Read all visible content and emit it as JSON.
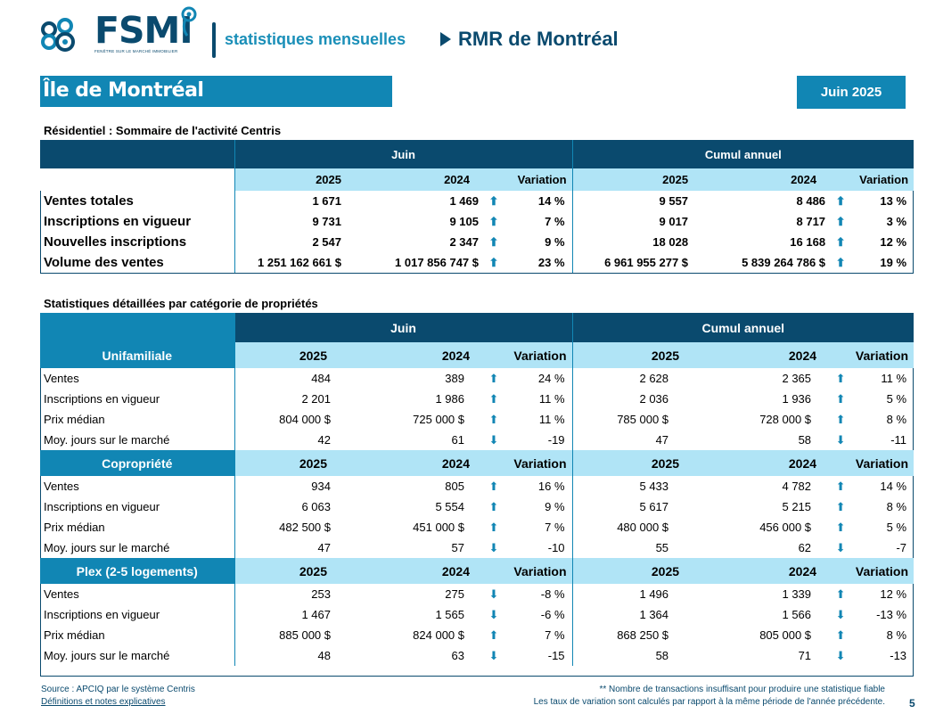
{
  "header": {
    "brand": "FSMI",
    "brand_tagline": "FENÊTRE SUR LE MARCHÉ IMMOBILIER",
    "subtitle": "statistiques mensuelles",
    "region": "RMR de Montréal",
    "brand_color": "#0a4a6e",
    "accent_color": "#1186b4"
  },
  "area": {
    "title": "Île de Montréal",
    "period": "Juin 2025"
  },
  "summary": {
    "title": "Résidentiel : Sommaire de l'activité Centris",
    "group_month": "Juin",
    "group_ytd": "Cumul annuel",
    "cols": [
      "2025",
      "2024",
      "Variation",
      "2025",
      "2024",
      "Variation"
    ],
    "rows": [
      {
        "label": "Ventes totales",
        "m25": "1 671",
        "m24": "1 469",
        "m_dir": "up",
        "m_var": "14 %",
        "y25": "9 557",
        "y24": "8 486",
        "y_dir": "up",
        "y_var": "13 %"
      },
      {
        "label": "Inscriptions en vigueur",
        "m25": "9 731",
        "m24": "9 105",
        "m_dir": "up",
        "m_var": "7 %",
        "y25": "9 017",
        "y24": "8 717",
        "y_dir": "up",
        "y_var": "3 %"
      },
      {
        "label": "Nouvelles inscriptions",
        "m25": "2 547",
        "m24": "2 347",
        "m_dir": "up",
        "m_var": "9 %",
        "y25": "18 028",
        "y24": "16 168",
        "y_dir": "up",
        "y_var": "12 %"
      },
      {
        "label": "Volume des ventes",
        "m25": "1 251 162 661  $",
        "m24": "1 017 856 747  $",
        "m_dir": "up",
        "m_var": "23 %",
        "y25": "6 961 955 277  $",
        "y24": "5 839 264 786  $",
        "y_dir": "up",
        "y_var": "19 %"
      }
    ]
  },
  "detail": {
    "title": "Statistiques détaillées par catégorie de propriétés",
    "group_month": "Juin",
    "group_ytd": "Cumul annuel",
    "categories": [
      {
        "name": "Unifamiliale",
        "cols": [
          "2025",
          "2024",
          "Variation",
          "2025",
          "2024",
          "Variation"
        ],
        "rows": [
          {
            "label": "Ventes",
            "m25": "484",
            "m24": "389",
            "m_dir": "up",
            "m_var": "24 %",
            "y25": "2 628",
            "y24": "2 365",
            "y_dir": "up",
            "y_var": "11 %"
          },
          {
            "label": "Inscriptions en vigueur",
            "m25": "2 201",
            "m24": "1 986",
            "m_dir": "up",
            "m_var": "11 %",
            "y25": "2 036",
            "y24": "1 936",
            "y_dir": "up",
            "y_var": "5 %"
          },
          {
            "label": "Prix médian",
            "m25": "804 000 $",
            "m24": "725 000 $",
            "m_dir": "up",
            "m_var": "11 %",
            "y25": "785 000 $",
            "y24": "728 000 $",
            "y_dir": "up",
            "y_var": "8 %"
          },
          {
            "label": "Moy. jours sur le marché",
            "m25": "42",
            "m24": "61",
            "m_dir": "down",
            "m_var": "-19",
            "y25": "47",
            "y24": "58",
            "y_dir": "down",
            "y_var": "-11"
          }
        ]
      },
      {
        "name": "Copropriété",
        "cols": [
          "2025",
          "2024",
          "Variation",
          "2025",
          "2024",
          "Variation"
        ],
        "rows": [
          {
            "label": "Ventes",
            "m25": "934",
            "m24": "805",
            "m_dir": "up",
            "m_var": "16 %",
            "y25": "5 433",
            "y24": "4 782",
            "y_dir": "up",
            "y_var": "14 %"
          },
          {
            "label": "Inscriptions en vigueur",
            "m25": "6 063",
            "m24": "5 554",
            "m_dir": "up",
            "m_var": "9 %",
            "y25": "5 617",
            "y24": "5 215",
            "y_dir": "up",
            "y_var": "8 %"
          },
          {
            "label": "Prix médian",
            "m25": "482 500 $",
            "m24": "451 000 $",
            "m_dir": "up",
            "m_var": "7 %",
            "y25": "480 000 $",
            "y24": "456 000 $",
            "y_dir": "up",
            "y_var": "5 %"
          },
          {
            "label": "Moy. jours sur le marché",
            "m25": "47",
            "m24": "57",
            "m_dir": "down",
            "m_var": "-10",
            "y25": "55",
            "y24": "62",
            "y_dir": "down",
            "y_var": "-7"
          }
        ]
      },
      {
        "name": "Plex (2-5 logements)",
        "cols": [
          "2025",
          "2024",
          "Variation",
          "2025",
          "2024",
          "Variation"
        ],
        "rows": [
          {
            "label": "Ventes",
            "m25": "253",
            "m24": "275",
            "m_dir": "down",
            "m_var": "-8 %",
            "y25": "1 496",
            "y24": "1 339",
            "y_dir": "up",
            "y_var": "12 %"
          },
          {
            "label": "Inscriptions en vigueur",
            "m25": "1 467",
            "m24": "1 565",
            "m_dir": "down",
            "m_var": "-6 %",
            "y25": "1 364",
            "y24": "1 566",
            "y_dir": "down",
            "y_var": "-13 %"
          },
          {
            "label": "Prix médian",
            "m25": "885 000 $",
            "m24": "824 000 $",
            "m_dir": "up",
            "m_var": "7 %",
            "y25": "868 250 $",
            "y24": "805 000 $",
            "y_dir": "up",
            "y_var": "8 %"
          },
          {
            "label": "Moy. jours sur le marché",
            "m25": "48",
            "m24": "63",
            "m_dir": "down",
            "m_var": "-15",
            "y25": "58",
            "y24": "71",
            "y_dir": "down",
            "y_var": "-13"
          }
        ]
      }
    ]
  },
  "footer": {
    "source": "Source : APCIQ par le système Centris",
    "definitions_link": "Définitions et notes explicatives",
    "note_insufficient": "** Nombre de transactions insuffisant pour produire une statistique fiable",
    "note_variation": "Les taux de variation sont calculés par rapport à la même période de l'année précédente.",
    "page_number": "5"
  }
}
